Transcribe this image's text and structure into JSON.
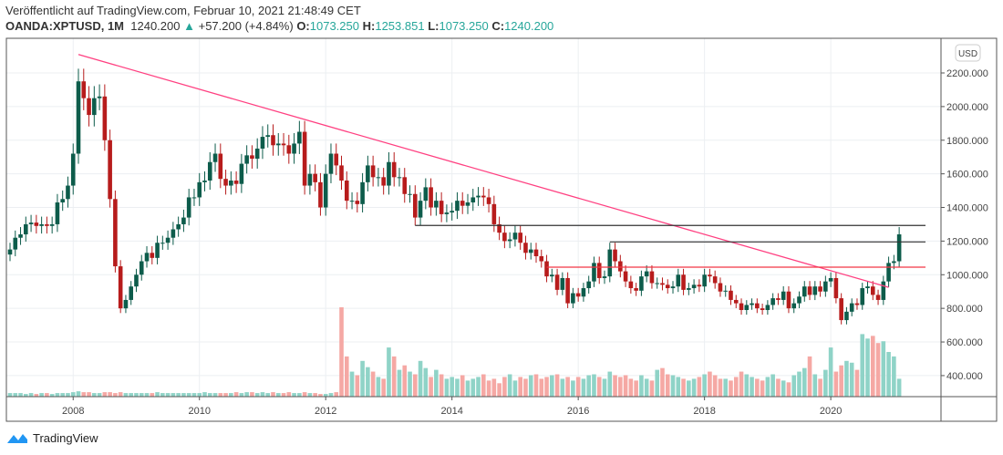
{
  "header": {
    "published": "Veröffentlicht auf TradingView.com, Februar 10, 2021 21:48:49 CET",
    "symbol": "OANDA:XPTUSD, 1M",
    "last": "1240.200",
    "change": "+57.200 (+4.84%)",
    "o_label": "O:",
    "o": "1073.250",
    "h_label": "H:",
    "h": "1253.851",
    "l_label": "L:",
    "l": "1073.250",
    "c_label": "C:",
    "c": "1240.200"
  },
  "currency_badge": "USD",
  "footer": {
    "logo": "TradingView"
  },
  "colors": {
    "up": "#0d5c4b",
    "down": "#b71c1c",
    "vol_up": "#8fd3c7",
    "vol_down": "#f5a8a4",
    "trend": "#ff4081",
    "level_black": "#333333",
    "level_red": "#f23645"
  },
  "chart_data": {
    "type": "candlestick",
    "title": "OANDA:XPTUSD, 1M",
    "start": "2007-01",
    "interval": "1M",
    "ylabel": "USD",
    "ylim": [
      280,
      2380
    ],
    "yticks": [
      "2200.000",
      "2000.000",
      "1800.000",
      "1600.000",
      "1400.000",
      "1200.000",
      "1000.000",
      "800.000",
      "600.000",
      "400.000"
    ],
    "ytick_values": [
      2200,
      2000,
      1800,
      1600,
      1400,
      1200,
      1000,
      800,
      600,
      400
    ],
    "xticks": [
      "2008",
      "2010",
      "2012",
      "2014",
      "2016",
      "2018",
      "2020"
    ],
    "closes": [
      1150,
      1220,
      1240,
      1300,
      1310,
      1290,
      1300,
      1290,
      1300,
      1430,
      1450,
      1530,
      1720,
      2150,
      2050,
      1950,
      2050,
      2060,
      1800,
      1450,
      1050,
      800,
      850,
      930,
      1000,
      1080,
      1130,
      1100,
      1190,
      1190,
      1220,
      1270,
      1300,
      1340,
      1460,
      1460,
      1550,
      1560,
      1670,
      1720,
      1570,
      1530,
      1560,
      1540,
      1660,
      1710,
      1690,
      1750,
      1820,
      1830,
      1770,
      1780,
      1770,
      1720,
      1780,
      1850,
      1530,
      1600,
      1550,
      1400,
      1600,
      1720,
      1650,
      1560,
      1440,
      1440,
      1420,
      1550,
      1650,
      1580,
      1580,
      1530,
      1670,
      1580,
      1580,
      1480,
      1480,
      1340,
      1440,
      1520,
      1400,
      1440,
      1360,
      1370,
      1380,
      1440,
      1410,
      1430,
      1460,
      1470,
      1460,
      1420,
      1300,
      1250,
      1200,
      1210,
      1250,
      1190,
      1130,
      1150,
      1110,
      1080,
      990,
      1000,
      910,
      980,
      830,
      890,
      870,
      920,
      960,
      1070,
      980,
      990,
      1150,
      1080,
      1020,
      960,
      920,
      905,
      990,
      1020,
      950,
      950,
      940,
      920,
      930,
      1000,
      910,
      920,
      940,
      930,
      1000,
      990,
      950,
      900,
      905,
      850,
      830,
      790,
      820,
      830,
      800,
      790,
      820,
      860,
      850,
      900,
      800,
      830,
      870,
      930,
      880,
      930,
      900,
      960,
      980,
      860,
      730,
      780,
      830,
      820,
      920,
      930,
      880,
      850,
      960,
      1070,
      1080,
      1240
    ],
    "volume_relative": [
      4,
      4,
      4,
      3,
      4,
      3,
      4,
      4,
      3,
      4,
      4,
      4,
      5,
      6,
      5,
      5,
      4,
      4,
      5,
      5,
      4,
      5,
      4,
      4,
      4,
      4,
      4,
      4,
      5,
      4,
      4,
      4,
      4,
      4,
      4,
      4,
      4,
      5,
      4,
      4,
      4,
      4,
      4,
      5,
      4,
      5,
      5,
      4,
      5,
      4,
      5,
      4,
      4,
      5,
      4,
      4,
      5,
      4,
      4,
      3,
      3,
      4,
      5,
      100,
      45,
      28,
      24,
      40,
      33,
      28,
      22,
      20,
      55,
      45,
      30,
      35,
      28,
      25,
      40,
      32,
      22,
      30,
      25,
      20,
      22,
      20,
      24,
      18,
      20,
      22,
      25,
      18,
      20,
      15,
      22,
      25,
      18,
      22,
      20,
      24,
      25,
      20,
      22,
      24,
      25,
      20,
      22,
      18,
      22,
      20,
      24,
      25,
      22,
      20,
      28,
      24,
      22,
      24,
      20,
      18,
      24,
      20,
      18,
      30,
      32,
      25,
      24,
      22,
      20,
      18,
      20,
      22,
      25,
      28,
      24,
      20,
      20,
      18,
      22,
      28,
      25,
      22,
      20,
      18,
      22,
      25,
      20,
      18,
      16,
      24,
      28,
      32,
      45,
      25,
      20,
      30,
      55,
      28,
      35,
      40,
      38,
      30,
      70,
      65,
      68,
      60,
      62,
      50,
      45,
      20
    ],
    "trendline": {
      "from": {
        "date": "2008-02",
        "price": 2310
      },
      "to": {
        "date": "2020-12",
        "price": 925
      }
    },
    "levels": [
      {
        "price": 1293,
        "from": "2013-06",
        "color": "black"
      },
      {
        "price": 1195,
        "from": "2016-07",
        "color": "black"
      },
      {
        "price": 1045,
        "from": "2015-07",
        "color": "red"
      }
    ]
  }
}
